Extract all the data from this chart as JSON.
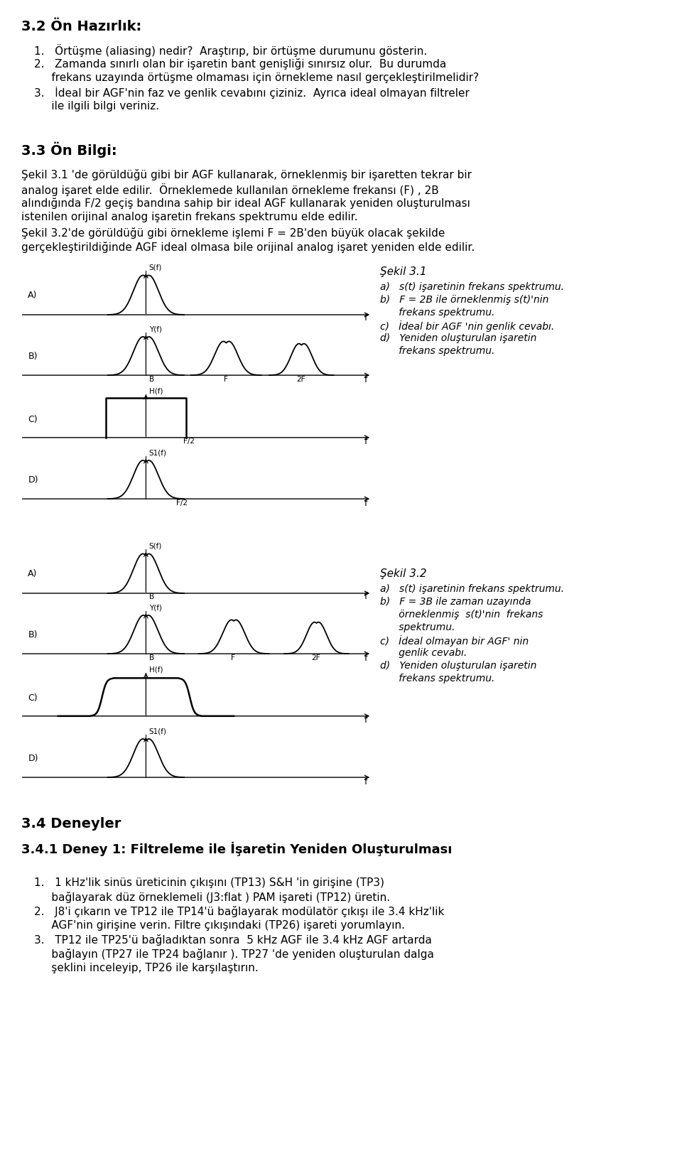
{
  "title_32": "3.2 Ön Hazırlık:",
  "title_33": "3.3 Ön Bilgi:",
  "title_34": "3.4 Deneyler",
  "title_341": "3.4.1 Deney 1: Filtreleme ile İşaretin Yeniden Oluşturulması",
  "hazirlik_lines": [
    "1.   Örtüşme (aliasing) nedir?  Araştırıp, bir örtüşme durumunu gösterin.",
    "2.   Zamanda sınırlı olan bir işaretin bant genişliği sınırsız olur.  Bu durumda",
    "     frekans uzayında örtüşme olmaması için örnekleme nasıl gerçekleştirilmelidir?",
    "3.   İdeal bir AGF'nin faz ve genlik cevabını çiziniz.  Ayrıca ideal olmayan filtreler",
    "     ile ilgili bilgi veriniz."
  ],
  "para1_lines": [
    "Şekil 3.1 'de görüldüğü gibi bir AGF kullanarak, örneklenmiş bir işaretten tekrar bir",
    "analog işaret elde edilir.  Örneklemede kullanılan örnekleme frekansı (F) , 2B",
    "alındığında F/2 geçiş bandına sahip bir ideal AGF kullanarak yeniden oluşturulması",
    "istenilen orijinal analog işaretin frekans spektrumu elde edilir."
  ],
  "para2_lines": [
    "Şekil 3.2'de görüldüğü gibi örnekleme işlemi F = 2B'den büyük olacak şekilde",
    "gerçekleştirildiğinde AGF ideal olmasa bile orijinal analog işaret yeniden elde edilir."
  ],
  "sekil31_caption": "Şekil 3.1",
  "sekil31_items": [
    "a)   s(t) işaretinin frekans spektrumu.",
    "b)   F = 2B ile örneklenmiş s(t)'nin",
    "      frekans spektrumu.",
    "c)   İdeal bir AGF 'nin genlik cevabı.",
    "d)   Yeniden oluşturulan işaretin",
    "      frekans spektrumu."
  ],
  "sekil32_caption": "Şekil 3.2",
  "sekil32_items": [
    "a)   s(t) işaretinin frekans spektrumu.",
    "b)   F = 3B ile zaman uzayında",
    "      örneklenmiş  s(t)'nin  frekans",
    "      spektrumu.",
    "c)   İdeal olmayan bir AGF' nin",
    "      genlik cevabı.",
    "d)   Yeniden oluşturulan işaretin",
    "      frekans spektrumu."
  ],
  "deney_lines": [
    "1.   1 kHz'lik sinüs üreticinin çıkışını (TP13) S&H 'in girişine (TP3)",
    "     bağlayarak düz örneklemeli (J3:flat ) PAM işareti (TP12) üretin.",
    "2.   J8'i çıkarın ve TP12 ile TP14'ü bağlayarak modülatör çıkışı ile 3.4 kHz'lik",
    "     AGF'nin girişine verin. Filtre çıkışındaki (TP26) işareti yorumlayın.",
    "3.   TP12 ile TP25'ü bağladıktan sonra  5 kHz AGF ile 3.4 kHz AGF artarda",
    "     bağlayın (TP27 ile TP24 bağlanır ). TP27 'de yeniden oluşturulan dalga",
    "     şeklini inceleyip, TP26 ile karşılaştırın."
  ],
  "bg_color": "#ffffff"
}
